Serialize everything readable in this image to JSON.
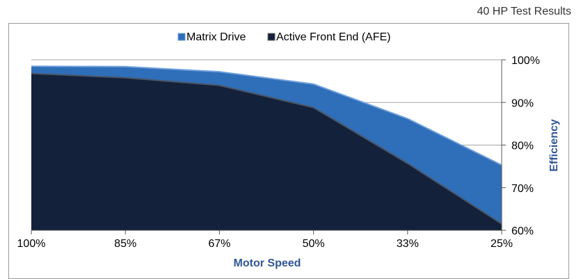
{
  "caption": "40 HP Test Results",
  "colors": {
    "matrix": "#2f6eb8",
    "matrix_edge": "#6fa0dc",
    "afe": "#14213a",
    "afe_edge": "#4a5566",
    "ylabel": "#2f5597",
    "xlabel": "#2f5597",
    "grid": "#a6a6a6",
    "axis": "#555555"
  },
  "chart_data": {
    "type": "area",
    "title": "",
    "xlabel": "Motor Speed",
    "ylabel": "Efficiency",
    "ylim": [
      60,
      100
    ],
    "yticks": [
      60,
      70,
      80,
      90,
      100
    ],
    "ytick_labels": [
      "60%",
      "70%",
      "80%",
      "90%",
      "100%"
    ],
    "categories": [
      "100%",
      "85%",
      "67%",
      "50%",
      "33%",
      "25%"
    ],
    "legend_placement": "top-center",
    "grid": true,
    "series": [
      {
        "name": "Matrix Drive",
        "values": [
          98.5,
          98.4,
          97.2,
          94.3,
          86.2,
          75.3
        ]
      },
      {
        "name": "Active Front End (AFE)",
        "values": [
          96.8,
          95.8,
          94.0,
          88.8,
          75.7,
          61.5
        ]
      }
    ]
  }
}
